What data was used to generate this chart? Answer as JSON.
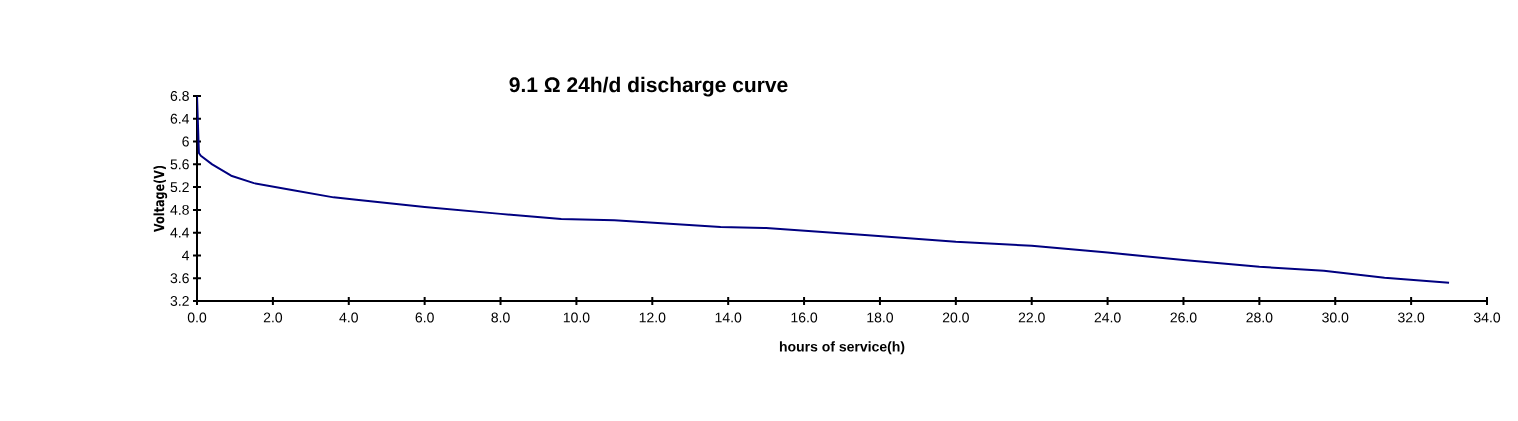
{
  "chart_data": {
    "type": "line",
    "title": "9.1 Ω 24h/d discharge curve",
    "xlabel": "hours of service(h)",
    "ylabel": "Voltage(V)",
    "x": [
      0,
      0.05,
      0.1,
      0.4,
      0.9,
      1.5,
      2.5,
      3.6,
      4.2,
      6,
      8,
      9.6,
      11,
      13.8,
      15,
      17.6,
      20,
      22,
      24,
      26,
      28,
      29.7,
      31.3,
      33
    ],
    "series": [
      {
        "color": "#000080",
        "values": [
          6.8,
          5.8,
          5.75,
          5.6,
          5.4,
          5.27,
          5.15,
          5.02,
          4.98,
          4.85,
          4.73,
          4.64,
          4.62,
          4.5,
          4.48,
          4.36,
          4.24,
          4.17,
          4.05,
          3.92,
          3.8,
          3.73,
          3.61,
          3.52
        ]
      }
    ],
    "xlim": [
      0,
      34
    ],
    "ylim": [
      3.2,
      6.8
    ],
    "xticks": [
      {
        "value": 0,
        "label": "0.0"
      },
      {
        "value": 2,
        "label": "2.0"
      },
      {
        "value": 4,
        "label": "4.0"
      },
      {
        "value": 6,
        "label": "6.0"
      },
      {
        "value": 8,
        "label": "8.0"
      },
      {
        "value": 10,
        "label": "10.0"
      },
      {
        "value": 12,
        "label": "12.0"
      },
      {
        "value": 14,
        "label": "14.0"
      },
      {
        "value": 16,
        "label": "16.0"
      },
      {
        "value": 18,
        "label": "18.0"
      },
      {
        "value": 20,
        "label": "20.0"
      },
      {
        "value": 22,
        "label": "22.0"
      },
      {
        "value": 24,
        "label": "24.0"
      },
      {
        "value": 26,
        "label": "26.0"
      },
      {
        "value": 28,
        "label": "28.0"
      },
      {
        "value": 30,
        "label": "30.0"
      },
      {
        "value": 32,
        "label": "32.0"
      },
      {
        "value": 34,
        "label": "34.0"
      }
    ],
    "yticks": [
      3.2,
      3.6,
      4,
      4.4,
      4.8,
      5.2,
      5.6,
      6,
      6.4,
      6.8
    ],
    "grid": false,
    "marker": "none",
    "line_style": "solid"
  }
}
